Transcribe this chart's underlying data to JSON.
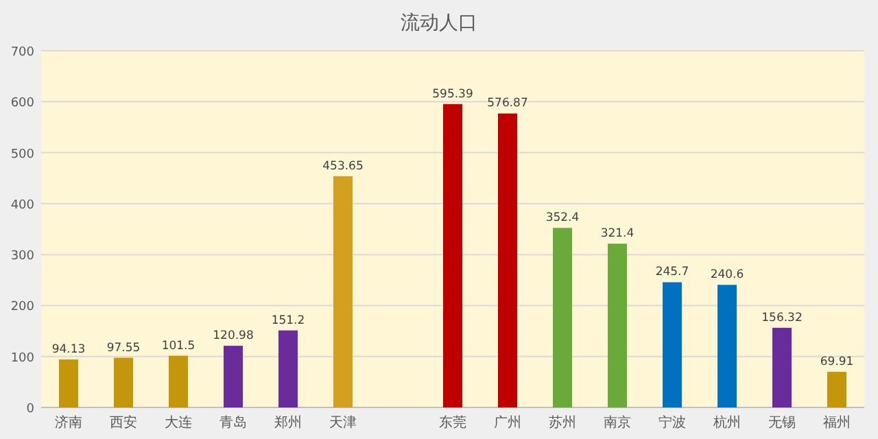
{
  "chart_data": {
    "type": "bar",
    "title": "流动人口",
    "categories": [
      "济南",
      "西安",
      "大连",
      "青岛",
      "郑州",
      "天津",
      null,
      "东莞",
      "广州",
      "苏州",
      "南京",
      "宁波",
      "杭州",
      "无锡",
      "福州"
    ],
    "values": [
      94.13,
      97.55,
      101.5,
      120.98,
      151.2,
      453.65,
      null,
      595.39,
      576.87,
      352.4,
      321.4,
      245.7,
      240.6,
      156.32,
      69.91
    ],
    "colors": [
      "#c4960c",
      "#c4960c",
      "#c4960c",
      "#6a2c9a",
      "#6a2c9a",
      "#d4a020",
      null,
      "#c00000",
      "#c00000",
      "#6aaa3a",
      "#6aaa3a",
      "#0070c0",
      "#0070c0",
      "#6a2c9a",
      "#c4960c"
    ],
    "ylim": [
      0,
      700
    ],
    "yticks": [
      0,
      100,
      200,
      300,
      400,
      500,
      600,
      700
    ],
    "grid": "y",
    "data_labels": true
  }
}
